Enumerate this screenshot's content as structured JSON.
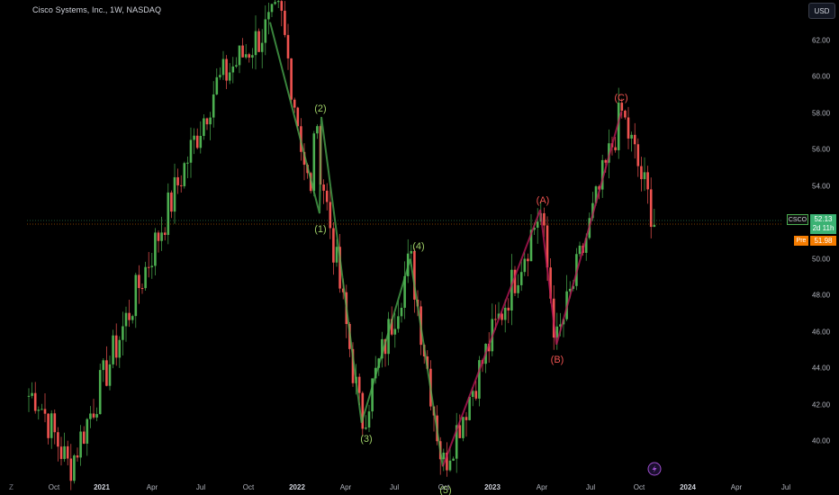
{
  "header": {
    "title": "Cisco Systems, Inc., 1W, NASDAQ",
    "currency_button": "USD"
  },
  "price_axis": {
    "ticks": [
      "62.00",
      "60.00",
      "58.00",
      "56.00",
      "54.00",
      "52.00",
      "50.00",
      "48.00",
      "46.00",
      "44.00",
      "42.00",
      "40.00"
    ]
  },
  "time_axis": {
    "timezone_button": "Z",
    "ticks": [
      {
        "label": "Oct",
        "year": false
      },
      {
        "label": "2021",
        "year": true
      },
      {
        "label": "Apr",
        "year": false
      },
      {
        "label": "Jul",
        "year": false
      },
      {
        "label": "Oct",
        "year": false
      },
      {
        "label": "2022",
        "year": true
      },
      {
        "label": "Apr",
        "year": false
      },
      {
        "label": "Jul",
        "year": false
      },
      {
        "label": "Oct",
        "year": false
      },
      {
        "label": "2023",
        "year": true
      },
      {
        "label": "Apr",
        "year": false
      },
      {
        "label": "Jul",
        "year": false
      },
      {
        "label": "Oct",
        "year": false
      },
      {
        "label": "2024",
        "year": true
      },
      {
        "label": "Apr",
        "year": false
      },
      {
        "label": "Jul",
        "year": false
      }
    ]
  },
  "last_price": {
    "ticker": "CSCO",
    "price": "52.13",
    "countdown": "2d 11h",
    "pre_label": "Pre",
    "pre_price": "51.98"
  },
  "wave_labels": {
    "impulse": [
      "(1)",
      "(2)",
      "(3)",
      "(4)",
      "(5)"
    ],
    "corrective": [
      "(A)",
      "(B)",
      "(C)"
    ]
  },
  "colors": {
    "up": "#26a69a",
    "up_candle": "#4caf50",
    "down": "#ef5350",
    "impulse_line": "#4caf50",
    "corrective_line": "#c2185b",
    "background": "#000000",
    "pre_market": "#f57c00"
  },
  "chart_data": {
    "type": "candlestick",
    "title": "Cisco Systems, Inc., 1W, NASDAQ",
    "y_axis_range": [
      39,
      63.5
    ],
    "x_range": [
      "2020-09",
      "2024-08"
    ],
    "key_points": [
      {
        "date": "2020-09",
        "price": 42.5
      },
      {
        "date": "2020-11",
        "price": 38.5
      },
      {
        "date": "2021-08",
        "price": 59.5
      },
      {
        "date": "2021-12",
        "price": 63.5
      },
      {
        "date": "2022-02",
        "price": 52.5
      },
      {
        "date": "2022-02",
        "price": 57.8
      },
      {
        "date": "2022-05",
        "price": 41.0
      },
      {
        "date": "2022-08",
        "price": 50.0
      },
      {
        "date": "2022-10",
        "price": 38.6
      },
      {
        "date": "2023-04",
        "price": 52.7
      },
      {
        "date": "2023-05",
        "price": 45.3
      },
      {
        "date": "2023-09",
        "price": 58.1
      },
      {
        "date": "2023-11",
        "price": 52.13
      }
    ],
    "waves": [
      {
        "label": "(1)",
        "date": "2022-02",
        "price": 52.5
      },
      {
        "label": "(2)",
        "date": "2022-02",
        "price": 57.8
      },
      {
        "label": "(3)",
        "date": "2022-05",
        "price": 41.0
      },
      {
        "label": "(4)",
        "date": "2022-08",
        "price": 50.0
      },
      {
        "label": "(5)",
        "date": "2022-10",
        "price": 38.6
      },
      {
        "label": "(A)",
        "date": "2023-04",
        "price": 52.7
      },
      {
        "label": "(B)",
        "date": "2023-05",
        "price": 45.3
      },
      {
        "label": "(C)",
        "date": "2023-09",
        "price": 58.1
      }
    ],
    "last_price": 52.13,
    "pre_market_price": 51.98,
    "grid": false
  }
}
